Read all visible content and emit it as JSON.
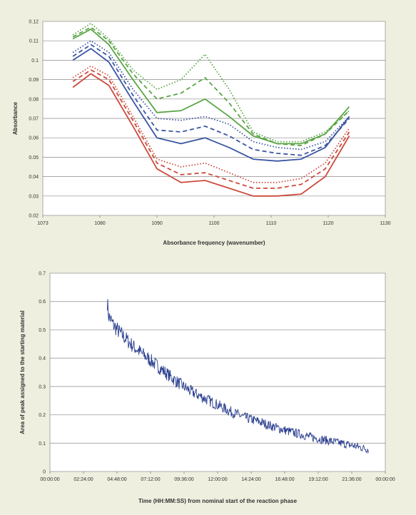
{
  "colors": {
    "background": "#efefdf",
    "plot_bg": "#ffffff",
    "green": "#5aa546",
    "blue": "#3b56a3",
    "red": "#cd4a3c",
    "trace": "#2b3f8f"
  },
  "chart_data": [
    {
      "type": "line",
      "title": "",
      "xlabel": "Absorbance frequency (wavenumber)",
      "ylabel": "Absorbance",
      "xlim": [
        1073,
        1130
      ],
      "ylim": [
        0.02,
        0.12
      ],
      "x_ticks": [
        "1073",
        "1080",
        "1090",
        "1100",
        "1110",
        "1120",
        "1130"
      ],
      "y_ticks": [
        "0.02",
        "0.03",
        "0.04",
        "0.05",
        "0.06",
        "0.07",
        "0.08",
        "0.09",
        "0.1",
        "0.11",
        "0.12"
      ],
      "grid": "horizontal",
      "legend": "none",
      "x": [
        1078,
        1081,
        1084,
        1088,
        1092,
        1096,
        1100,
        1104,
        1108,
        1112,
        1116,
        1120,
        1124
      ],
      "series": [
        {
          "color": "#5aa546",
          "style": "dotted",
          "values": [
            0.113,
            0.119,
            0.111,
            0.095,
            0.085,
            0.09,
            0.103,
            0.085,
            0.063,
            0.058,
            0.058,
            0.063,
            0.074
          ]
        },
        {
          "color": "#5aa546",
          "style": "dashed",
          "values": [
            0.112,
            0.117,
            0.11,
            0.093,
            0.08,
            0.083,
            0.091,
            0.078,
            0.062,
            0.057,
            0.056,
            0.062,
            0.074
          ]
        },
        {
          "color": "#5aa546",
          "style": "solid",
          "values": [
            0.111,
            0.116,
            0.108,
            0.09,
            0.073,
            0.074,
            0.08,
            0.071,
            0.061,
            0.057,
            0.057,
            0.062,
            0.076
          ]
        },
        {
          "color": "#3b56a3",
          "style": "dotted",
          "values": [
            0.104,
            0.11,
            0.104,
            0.085,
            0.07,
            0.069,
            0.071,
            0.067,
            0.058,
            0.055,
            0.054,
            0.058,
            0.071
          ]
        },
        {
          "color": "#3b56a3",
          "style": "dashed",
          "values": [
            0.102,
            0.108,
            0.102,
            0.082,
            0.064,
            0.063,
            0.066,
            0.061,
            0.054,
            0.052,
            0.051,
            0.056,
            0.07
          ]
        },
        {
          "color": "#3b56a3",
          "style": "solid",
          "values": [
            0.1,
            0.106,
            0.099,
            0.079,
            0.06,
            0.057,
            0.06,
            0.055,
            0.049,
            0.048,
            0.049,
            0.055,
            0.071
          ]
        },
        {
          "color": "#cd4a3c",
          "style": "dotted",
          "values": [
            0.091,
            0.097,
            0.092,
            0.071,
            0.049,
            0.045,
            0.047,
            0.042,
            0.037,
            0.037,
            0.039,
            0.047,
            0.065
          ]
        },
        {
          "color": "#cd4a3c",
          "style": "dashed",
          "values": [
            0.089,
            0.095,
            0.09,
            0.069,
            0.047,
            0.041,
            0.042,
            0.038,
            0.034,
            0.034,
            0.036,
            0.044,
            0.063
          ]
        },
        {
          "color": "#cd4a3c",
          "style": "solid",
          "values": [
            0.086,
            0.093,
            0.087,
            0.066,
            0.044,
            0.037,
            0.038,
            0.034,
            0.03,
            0.03,
            0.031,
            0.04,
            0.061
          ]
        }
      ]
    },
    {
      "type": "line",
      "title": "",
      "xlabel": "Time (HH:MM:SS) from nominal start of the reaction phase",
      "ylabel": "Area of peak assigned to the starting material",
      "x_ticks": [
        "00:00:00",
        "02:24:00",
        "04:48:00",
        "07:12:00",
        "09:36:00",
        "12:00:00",
        "14:24:00",
        "16:48:00",
        "19:12:00",
        "21:36:00",
        "00:00:00"
      ],
      "xlim": [
        0,
        24
      ],
      "ylim": [
        0,
        0.7
      ],
      "y_ticks": [
        "0",
        "0.1",
        "0.2",
        "0.3",
        "0.4",
        "0.5",
        "0.6",
        "0.7"
      ],
      "grid": "horizontal",
      "legend": "none",
      "series": [
        {
          "color": "#2b3f8f",
          "x": [
            4.1,
            4.2,
            4.5,
            5.0,
            6.0,
            7.0,
            8.0,
            9.0,
            10.0,
            11.0,
            12.0,
            13.0,
            14.0,
            15.0,
            16.0,
            17.0,
            18.0,
            19.0,
            20.0,
            21.0,
            22.0,
            22.8
          ],
          "values": [
            0.6,
            0.55,
            0.52,
            0.49,
            0.44,
            0.4,
            0.36,
            0.32,
            0.285,
            0.26,
            0.235,
            0.21,
            0.19,
            0.175,
            0.158,
            0.143,
            0.13,
            0.118,
            0.108,
            0.098,
            0.088,
            0.078
          ]
        }
      ]
    }
  ]
}
